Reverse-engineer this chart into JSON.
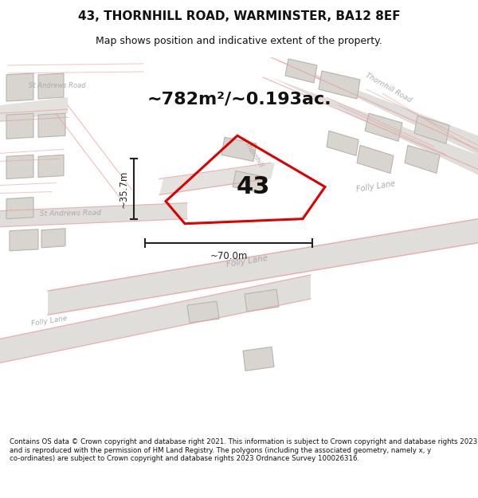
{
  "title_line1": "43, THORNHILL ROAD, WARMINSTER, BA12 8EF",
  "title_line2": "Map shows position and indicative extent of the property.",
  "area_text": "~782m²/~0.193ac.",
  "number_label": "43",
  "dim_vertical": "~35.7m",
  "dim_horizontal": "~70.0m",
  "footer_text": "Contains OS data © Crown copyright and database right 2021. This information is subject to Crown copyright and database rights 2023 and is reproduced with the permission of HM Land Registry. The polygons (including the associated geometry, namely x, y co-ordinates) are subject to Crown copyright and database rights 2023 Ordnance Survey 100026316.",
  "bg_color": "#ffffff",
  "map_bg": "#f0efed",
  "road_color": "#e8a0a0",
  "building_color": "#d8d5d0",
  "building_edge": "#b8b4ae",
  "property_color": "#dd0000",
  "road_label_color": "#aaaaaa",
  "dim_color": "#222222",
  "title_color": "#111111",
  "footer_color": "#111111"
}
